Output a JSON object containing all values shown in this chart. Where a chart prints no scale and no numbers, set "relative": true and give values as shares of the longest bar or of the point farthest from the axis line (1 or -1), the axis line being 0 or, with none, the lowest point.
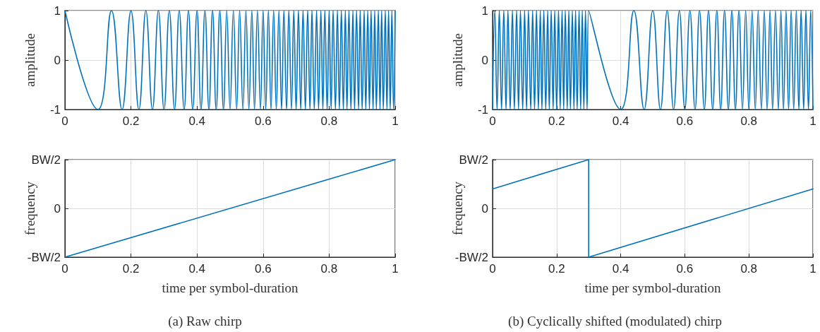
{
  "chart_data": [
    {
      "type": "line",
      "ylabel": "amplitude",
      "color": "#0072bd",
      "grid": true,
      "marker": "none",
      "line_style": "solid",
      "xlim": [
        0,
        1
      ],
      "xticks": [
        0,
        0.2,
        0.4,
        0.6,
        0.8,
        1
      ],
      "ylim": [
        -1,
        1
      ],
      "yticks": [
        -1,
        0,
        1
      ],
      "x": [
        0,
        0.1,
        0.141,
        0.173,
        0.2,
        0.224,
        0.245,
        0.265,
        0.283,
        0.3,
        0.316,
        0.332,
        0.346,
        0.361,
        0.374,
        0.387,
        0.4,
        0.412,
        0.424,
        0.436,
        0.447,
        0.458,
        0.469,
        0.48,
        0.49,
        0.5,
        0.51,
        0.52,
        0.529,
        0.539,
        0.548,
        0.557,
        0.566,
        0.574,
        0.583,
        0.592,
        0.6,
        0.608,
        0.616,
        0.624,
        0.632,
        0.64,
        0.648,
        0.656,
        0.663,
        0.671,
        0.678,
        0.686,
        0.693,
        0.7,
        0.707,
        0.714,
        0.721,
        0.728,
        0.735,
        0.742,
        0.748,
        0.755,
        0.762,
        0.768,
        0.775,
        0.781,
        0.787,
        0.794,
        0.8,
        0.806,
        0.812,
        0.819,
        0.825,
        0.831,
        0.837,
        0.843,
        0.849,
        0.854,
        0.86,
        0.866,
        0.872,
        0.877,
        0.883,
        0.889,
        0.894,
        0.9,
        0.906,
        0.911,
        0.917,
        0.922,
        0.927,
        0.933,
        0.938,
        0.943,
        0.949,
        0.954,
        0.959,
        0.964,
        0.97,
        0.975,
        0.98,
        0.985,
        0.99,
        0.995,
        1
      ],
      "values": [
        1,
        -1,
        1,
        -1,
        1,
        -1,
        1,
        -1,
        1,
        -1,
        1,
        -1,
        1,
        -1,
        1,
        -1,
        1,
        -1,
        1,
        -1,
        1,
        -1,
        1,
        -1,
        1,
        -1,
        1,
        -1,
        1,
        -1,
        1,
        -1,
        1,
        -1,
        1,
        -1,
        1,
        -1,
        1,
        -1,
        1,
        -1,
        1,
        -1,
        1,
        -1,
        1,
        -1,
        1,
        -1,
        1,
        -1,
        1,
        -1,
        1,
        -1,
        1,
        -1,
        1,
        -1,
        1,
        -1,
        1,
        -1,
        1,
        -1,
        1,
        -1,
        1,
        -1,
        1,
        -1,
        1,
        -1,
        1,
        -1,
        1,
        -1,
        1,
        -1,
        1,
        -1,
        1,
        -1,
        1,
        -1,
        1,
        -1,
        1,
        -1,
        1,
        -1,
        1,
        -1,
        1,
        -1,
        1,
        -1,
        1,
        -1,
        1
      ]
    },
    {
      "type": "line",
      "ylabel": "amplitude",
      "color": "#0072bd",
      "grid": true,
      "marker": "none",
      "line_style": "solid",
      "xlim": [
        0,
        1
      ],
      "xticks": [
        0,
        0.2,
        0.4,
        0.6,
        0.8,
        1
      ],
      "ylim": [
        -1,
        1
      ],
      "yticks": [
        -1,
        0,
        1
      ],
      "x": [
        0,
        0.007,
        0.014,
        0.021,
        0.028,
        0.035,
        0.042,
        0.048,
        0.055,
        0.062,
        0.068,
        0.075,
        0.081,
        0.087,
        0.094,
        0.1,
        0.106,
        0.112,
        0.119,
        0.125,
        0.131,
        0.137,
        0.143,
        0.149,
        0.154,
        0.16,
        0.166,
        0.172,
        0.177,
        0.183,
        0.189,
        0.194,
        0.2,
        0.206,
        0.211,
        0.217,
        0.222,
        0.227,
        0.233,
        0.238,
        0.243,
        0.249,
        0.254,
        0.259,
        0.264,
        0.27,
        0.275,
        0.28,
        0.285,
        0.29,
        0.295,
        0.3,
        0.4,
        0.441,
        0.473,
        0.5,
        0.524,
        0.545,
        0.565,
        0.583,
        0.6,
        0.616,
        0.632,
        0.646,
        0.661,
        0.674,
        0.687,
        0.7,
        0.712,
        0.724,
        0.736,
        0.747,
        0.758,
        0.769,
        0.78,
        0.79,
        0.8,
        0.81,
        0.82,
        0.829,
        0.839,
        0.848,
        0.857,
        0.866,
        0.874,
        0.883,
        0.892,
        0.9,
        0.908,
        0.916,
        0.924,
        0.932,
        0.94,
        0.948,
        0.956,
        0.963,
        0.971,
        0.978,
        0.986,
        0.993,
        1
      ],
      "values": [
        -1,
        1,
        -1,
        1,
        -1,
        1,
        -1,
        1,
        -1,
        1,
        -1,
        1,
        -1,
        1,
        -1,
        1,
        -1,
        1,
        -1,
        1,
        -1,
        1,
        -1,
        1,
        -1,
        1,
        -1,
        1,
        -1,
        1,
        -1,
        1,
        -1,
        1,
        -1,
        1,
        -1,
        1,
        -1,
        1,
        -1,
        1,
        -1,
        1,
        -1,
        1,
        -1,
        1,
        -1,
        1,
        -1,
        1,
        -1,
        1,
        -1,
        1,
        -1,
        1,
        -1,
        1,
        -1,
        1,
        -1,
        1,
        -1,
        1,
        -1,
        1,
        -1,
        1,
        -1,
        1,
        -1,
        1,
        -1,
        1,
        -1,
        1,
        -1,
        1,
        -1,
        1,
        -1,
        1,
        -1,
        1,
        -1,
        1,
        -1,
        1,
        -1,
        1,
        -1,
        1,
        -1,
        1,
        -1,
        1,
        -1,
        1,
        -1
      ]
    },
    {
      "type": "line",
      "relative": true,
      "xlabel": "time per symbol-duration",
      "ylabel": "frequency",
      "color": "#0072bd",
      "grid": true,
      "marker": "none",
      "line_style": "solid",
      "xlim": [
        0,
        1
      ],
      "xticks": [
        0,
        0.2,
        0.4,
        0.6,
        0.8,
        1
      ],
      "x": [
        0,
        1
      ],
      "values": [
        0,
        1
      ],
      "annotations": [
        "-BW/2",
        "0",
        "BW/2",
        "(a) Raw chirp"
      ]
    },
    {
      "type": "line",
      "relative": true,
      "xlabel": "time per symbol-duration",
      "ylabel": "frequency",
      "color": "#0072bd",
      "grid": true,
      "marker": "none",
      "line_style": "solid",
      "xlim": [
        0,
        1
      ],
      "xticks": [
        0,
        0.2,
        0.4,
        0.6,
        0.8,
        1
      ],
      "x": [
        0,
        0.3,
        0.3,
        1
      ],
      "values": [
        0.7,
        1,
        0,
        0.7
      ],
      "annotations": [
        "-BW/2",
        "0",
        "BW/2",
        "(b) Cyclically shifted (modulated) chirp"
      ]
    }
  ]
}
